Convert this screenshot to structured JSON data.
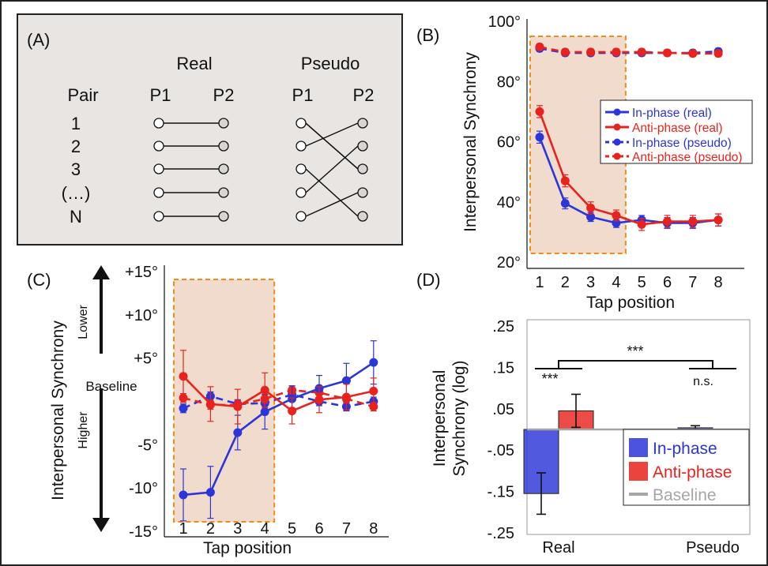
{
  "colors": {
    "blue": "#2b35d8",
    "red": "#e8231d",
    "shade": "#f1dbcc",
    "dash": "#f08c1a",
    "baseline": "#a6a6a6",
    "panelA": "#e9e5e2"
  },
  "panelA": {
    "label": "(A)",
    "real_heading": "Real",
    "pseudo_heading": "Pseudo",
    "pair_heading": "Pair",
    "p1": "P1",
    "p2": "P2",
    "rows": [
      "1",
      "2",
      "3",
      "(…)",
      "N"
    ],
    "pseudo_links": [
      [
        0,
        2
      ],
      [
        1,
        0
      ],
      [
        2,
        4
      ],
      [
        3,
        1
      ],
      [
        4,
        3
      ]
    ]
  },
  "panelB": {
    "label": "(B)",
    "ylabel": "Interpersonal Synchrony",
    "xlabel": "Tap position",
    "legend": [
      "In-phase (real)",
      "Anti-phase (real)",
      "In-phase (pseudo)",
      "Anti-phase (pseudo)"
    ]
  },
  "panelC": {
    "label": "(C)",
    "ylabel": "Interpersonal Synchrony",
    "xlabel": "Tap position",
    "lower": "Lower",
    "higher": "Higher",
    "baseline": "Baseline"
  },
  "panelD": {
    "label": "(D)",
    "ylabel_line1": "Interpersonal",
    "ylabel_line2": "Synchrony (log)",
    "sig_real": "***",
    "sig_between": "***",
    "sig_pseudo": "n.s.",
    "legend": [
      "In-phase",
      "Anti-phase",
      "Baseline"
    ]
  },
  "chart_data": [
    {
      "type": "line",
      "panel": "B",
      "xlabel": "Tap position",
      "ylabel": "Interpersonal Synchrony",
      "x": [
        1,
        2,
        3,
        4,
        5,
        6,
        7,
        8
      ],
      "ylim": [
        20,
        100
      ],
      "yticks": [
        "20°",
        "40°",
        "60°",
        "80°",
        "100°"
      ],
      "shaded_x": [
        1,
        4
      ],
      "series": [
        {
          "name": "In-phase (real)",
          "color": "blue",
          "dashed": false,
          "values": [
            61.5,
            39.5,
            35,
            33,
            34,
            33,
            33,
            34
          ],
          "err": [
            2,
            1.8,
            1.5,
            1.5,
            1.5,
            1.8,
            1.8,
            2
          ]
        },
        {
          "name": "Anti-phase (real)",
          "color": "red",
          "dashed": false,
          "values": [
            70,
            47,
            38,
            35.5,
            32.5,
            33.5,
            33.5,
            34
          ],
          "err": [
            2,
            2,
            2,
            1.8,
            2,
            2,
            2,
            2
          ]
        },
        {
          "name": "In-phase (pseudo)",
          "color": "blue",
          "dashed": true,
          "values": [
            91,
            89.5,
            89.5,
            89.5,
            89.5,
            89.5,
            89.5,
            90
          ],
          "err": [
            1,
            1,
            1,
            1,
            1,
            1,
            1,
            1
          ]
        },
        {
          "name": "Anti-phase (pseudo)",
          "color": "red",
          "dashed": true,
          "values": [
            91.5,
            89.8,
            89.8,
            89.8,
            89.8,
            89.5,
            89.3,
            89.3
          ],
          "err": [
            1,
            1,
            1,
            1,
            1,
            1,
            1,
            1
          ]
        }
      ]
    },
    {
      "type": "line",
      "panel": "C",
      "xlabel": "Tap position",
      "ylabel": "Interpersonal Synchrony",
      "x": [
        1,
        2,
        3,
        4,
        5,
        6,
        7,
        8
      ],
      "ylim": [
        -15,
        15
      ],
      "yticks": [
        "-15°",
        "-10°",
        "-5°",
        "+5°",
        "+10°",
        "+15°"
      ],
      "shaded_x": [
        1,
        4
      ],
      "series": [
        {
          "color": "blue",
          "dashed": false,
          "values": [
            -10.8,
            -10.5,
            -3.6,
            -1.2,
            0.3,
            1.5,
            2.4,
            4.5
          ],
          "err": [
            3,
            3,
            2,
            2,
            1.5,
            1.5,
            2,
            2.5
          ]
        },
        {
          "color": "red",
          "dashed": false,
          "values": [
            2.9,
            -0.3,
            -0.6,
            1.3,
            -1.1,
            0.2,
            0.5,
            1.2
          ],
          "err": [
            3,
            2,
            2,
            2,
            1.5,
            1.5,
            1.5,
            1.5
          ]
        },
        {
          "color": "blue",
          "dashed": true,
          "values": [
            -0.8,
            0.6,
            -0.3,
            -0.2,
            0.8,
            0,
            -0.6,
            0
          ],
          "err": [
            0.5,
            0.5,
            0.5,
            0.5,
            0.5,
            0.5,
            0.5,
            0.5
          ]
        },
        {
          "color": "red",
          "dashed": true,
          "values": [
            0.4,
            -0.4,
            -0.4,
            0.3,
            1.3,
            1,
            0.3,
            -0.6
          ],
          "err": [
            0.5,
            0.5,
            0.5,
            0.5,
            0.5,
            0.5,
            0.5,
            0.5
          ]
        }
      ]
    },
    {
      "type": "bar",
      "panel": "D",
      "categories": [
        "Real",
        "Pseudo"
      ],
      "ylabel": "Interpersonal Synchrony (log)",
      "ylim": [
        -0.25,
        0.25
      ],
      "yticks": [
        ".25",
        ".15",
        ".05",
        "-.05",
        "-.15",
        "-.25"
      ],
      "series": [
        {
          "name": "In-phase",
          "color": "blue",
          "values": [
            -0.155,
            0.004
          ],
          "err": [
            0.05,
            0.005
          ]
        },
        {
          "name": "Anti-phase",
          "color": "red",
          "values": [
            0.045,
            -0.004
          ],
          "err": [
            0.04,
            0.004
          ]
        }
      ],
      "baseline": 0
    }
  ]
}
